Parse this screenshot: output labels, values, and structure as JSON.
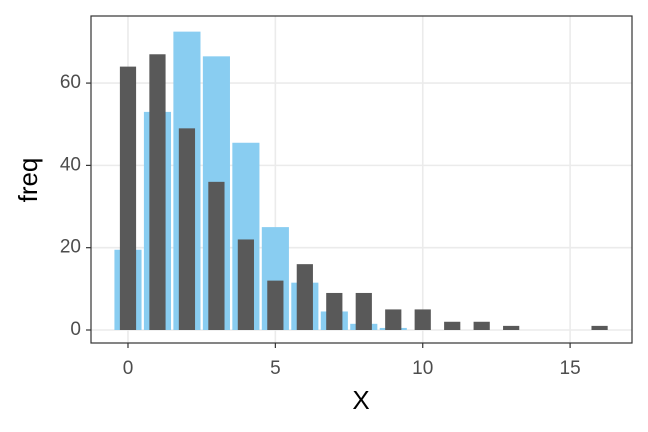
{
  "chart_data": {
    "type": "bar",
    "x_label": "X",
    "y_label": "freq",
    "series": [
      {
        "color": "#89cdf1",
        "x": [
          0,
          1,
          2,
          3,
          4,
          5,
          6,
          7,
          8,
          9
        ],
        "values": [
          19.5,
          53,
          72.5,
          66.5,
          45.5,
          25,
          11.5,
          4.5,
          1.5,
          0.5
        ]
      },
      {
        "color": "#595959",
        "x": [
          0,
          1,
          2,
          3,
          4,
          5,
          6,
          7,
          8,
          9,
          10,
          11,
          12,
          13,
          16
        ],
        "values": [
          64,
          67,
          49,
          36,
          22,
          12,
          16,
          9,
          9,
          5,
          5,
          2,
          2,
          1,
          1
        ]
      }
    ],
    "xlim": [
      -1.255,
      17.1
    ],
    "xticks": [
      0,
      5,
      10,
      15
    ],
    "ylim": [
      -3.16,
      76.3
    ],
    "yticks": [
      0,
      20,
      40,
      60
    ],
    "grid": true
  }
}
